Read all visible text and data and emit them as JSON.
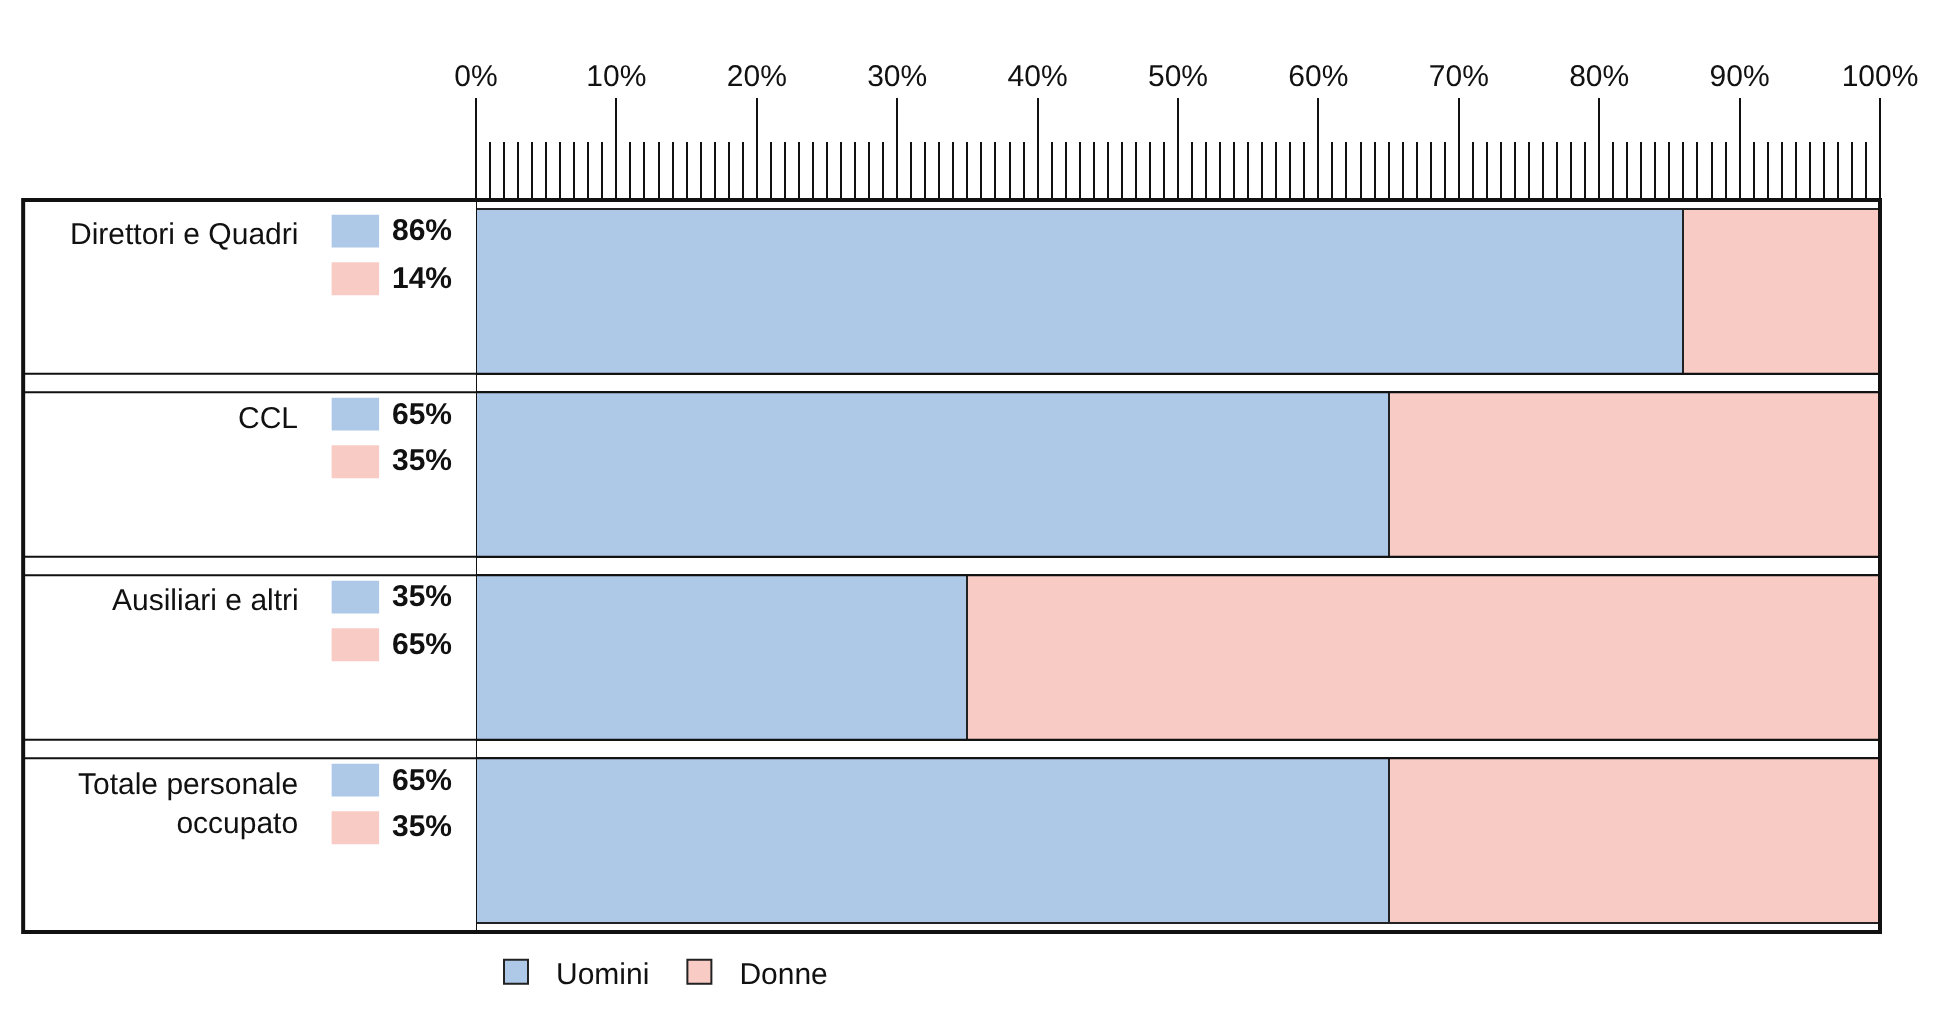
{
  "chart_data": {
    "type": "bar",
    "orientation": "horizontal",
    "stacked": true,
    "categories": [
      "Direttori e Quadri",
      "CCL",
      "Ausiliari e altri",
      "Totale personale occupato"
    ],
    "series": [
      {
        "name": "Uomini",
        "color": "#aec8e8",
        "values": [
          86,
          65,
          35,
          65
        ],
        "value_labels": [
          "86%",
          "65%",
          "35%",
          "65%"
        ]
      },
      {
        "name": "Donne",
        "color": "#f8cbc5",
        "values": [
          14,
          35,
          65,
          35
        ],
        "value_labels": [
          "14%",
          "35%",
          "65%",
          "35%"
        ]
      }
    ],
    "xlim": [
      0,
      100
    ],
    "xticks": [
      {
        "value": 0,
        "label": "0%"
      },
      {
        "value": 10,
        "label": "10%"
      },
      {
        "value": 20,
        "label": "20%"
      },
      {
        "value": 30,
        "label": "30%"
      },
      {
        "value": 40,
        "label": "40%"
      },
      {
        "value": 50,
        "label": "50%"
      },
      {
        "value": 60,
        "label": "60%"
      },
      {
        "value": 70,
        "label": "70%"
      },
      {
        "value": 80,
        "label": "80%"
      },
      {
        "value": 90,
        "label": "90%"
      },
      {
        "value": 100,
        "label": "100%"
      }
    ],
    "legend": "bottom"
  }
}
